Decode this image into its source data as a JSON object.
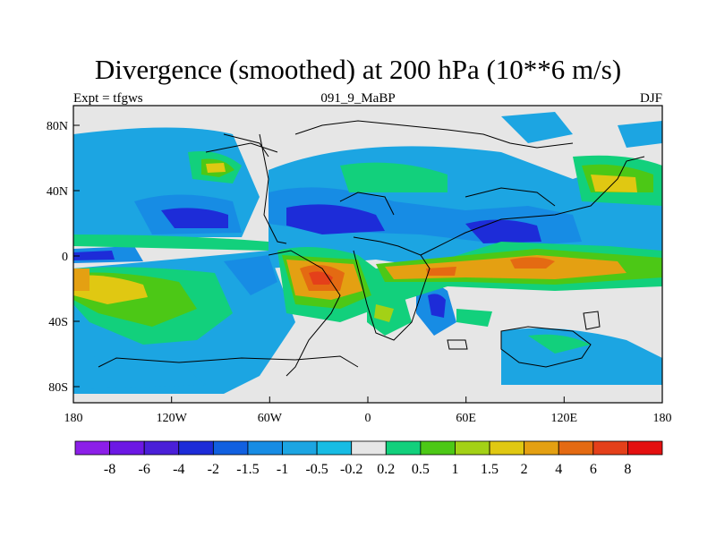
{
  "title": "Divergence (smoothed) at 200 hPa (10**6 m/s)",
  "subtitle_left": "Expt = tfgws",
  "subtitle_center": "091_9_MaBP",
  "subtitle_right": "DJF",
  "map": {
    "type": "filled-contour map",
    "lon_range": [
      -180,
      180
    ],
    "lat_range": [
      -90,
      90
    ],
    "x_tick_labels": [
      "180",
      "120W",
      "60W",
      "0",
      "60E",
      "120E",
      "180"
    ],
    "y_tick_labels": [
      "80N",
      "40N",
      "0",
      "40S",
      "80S"
    ]
  },
  "legend": {
    "levels": [
      "-8",
      "-6",
      "-4",
      "-2",
      "-1.5",
      "-1",
      "-0.5",
      "-0.2",
      "0.2",
      "0.5",
      "1",
      "1.5",
      "2",
      "4",
      "6",
      "8"
    ],
    "colors": [
      "#8c1fe8",
      "#6c18e4",
      "#4a1fd8",
      "#1d2cd8",
      "#1160e0",
      "#178ce4",
      "#1ca5e2",
      "#17bce4",
      "#e6e6e6",
      "#12d07c",
      "#4cc816",
      "#a3d116",
      "#e0c812",
      "#e4a012",
      "#e46a12",
      "#e4401a",
      "#e41010"
    ]
  }
}
